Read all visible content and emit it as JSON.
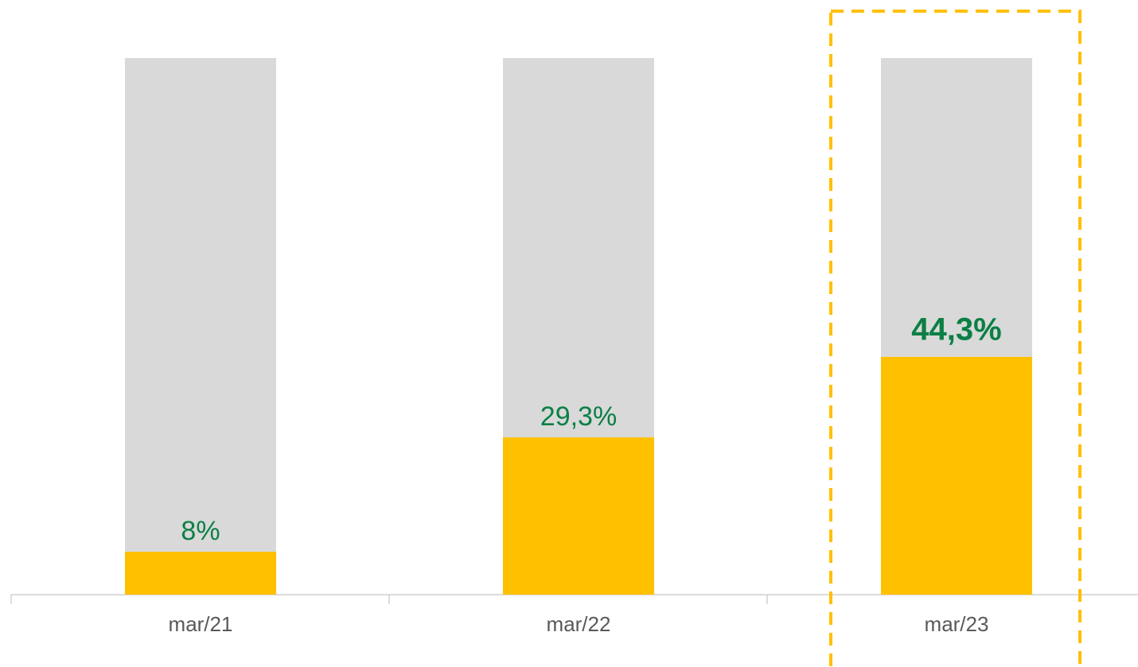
{
  "chart_data": {
    "type": "bar",
    "categories": [
      "mar/21",
      "mar/22",
      "mar/23"
    ],
    "values": [
      8,
      29.3,
      44.3
    ],
    "value_labels": [
      "8%",
      "29,3%",
      "44,3%"
    ],
    "color": "#FFC000",
    "track_color": "#D9D9D9",
    "label_color": "#0B7F45",
    "ylim": [
      0,
      100
    ],
    "highlight_index": 2
  }
}
